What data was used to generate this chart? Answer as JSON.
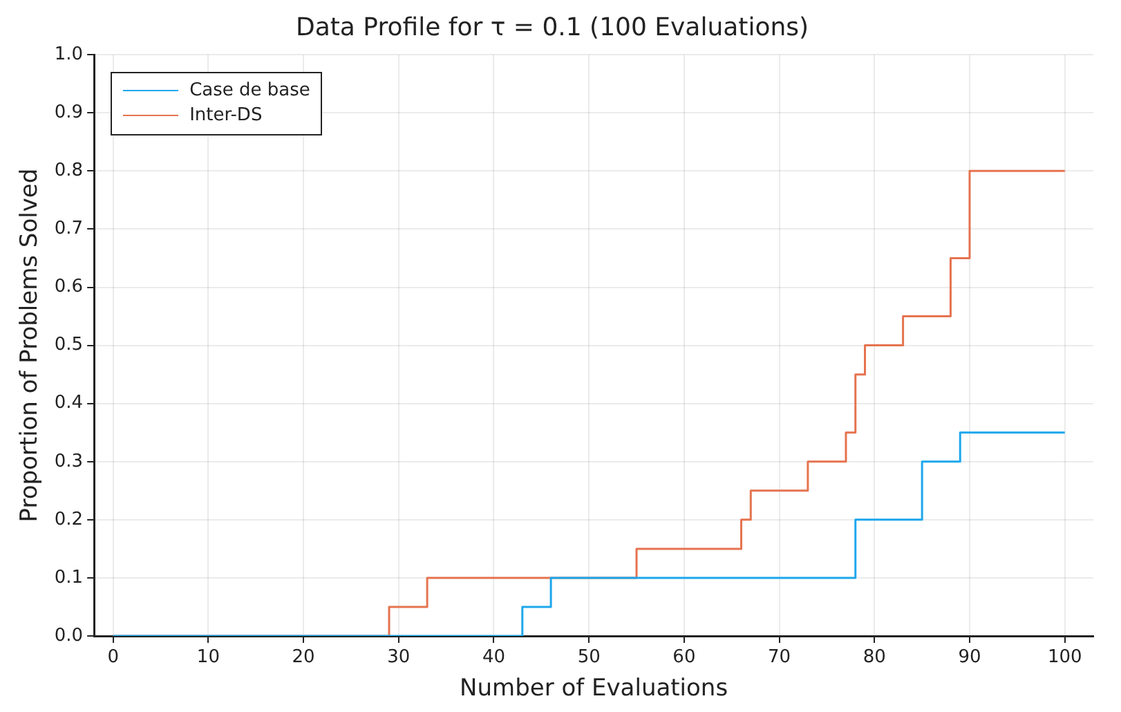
{
  "chart_data": {
    "type": "step",
    "title": "Data Profile for τ = 0.1 (100 Evaluations)",
    "xlabel": "Number of Evaluations",
    "ylabel": "Proportion of Problems Solved",
    "xlim": [
      -2,
      103
    ],
    "xticks": [
      0,
      10,
      20,
      30,
      40,
      50,
      60,
      70,
      80,
      90,
      100
    ],
    "ylim": [
      0,
      1
    ],
    "yticks": [
      {
        "value": 0,
        "label": "0.0"
      },
      {
        "value": 0.1,
        "label": "0.1"
      },
      {
        "value": 0.2,
        "label": "0.2"
      },
      {
        "value": 0.3,
        "label": "0.3"
      },
      {
        "value": 0.4,
        "label": "0.4"
      },
      {
        "value": 0.5,
        "label": "0.5"
      },
      {
        "value": 0.6,
        "label": "0.6"
      },
      {
        "value": 0.7,
        "label": "0.7"
      },
      {
        "value": 0.8,
        "label": "0.8"
      },
      {
        "value": 0.9,
        "label": "0.9"
      },
      {
        "value": 1,
        "label": "1.0"
      }
    ],
    "grid": true,
    "legend": "top left",
    "marker": "none",
    "line_style": "solid",
    "series": [
      {
        "name": "Case de base",
        "color": "#1ca7ec",
        "x": [
          0,
          43,
          46,
          78,
          85,
          89,
          100
        ],
        "values": [
          0,
          0.05,
          0.1,
          0.2,
          0.3,
          0.35,
          0.35
        ]
      },
      {
        "name": "Inter-DS",
        "color": "#e5734f",
        "x": [
          0,
          29,
          33,
          55,
          66,
          67,
          73,
          77,
          78,
          79,
          83,
          88,
          90,
          100
        ],
        "values": [
          0,
          0.05,
          0.1,
          0.15,
          0.2,
          0.25,
          0.3,
          0.35,
          0.45,
          0.5,
          0.55,
          0.65,
          0.8,
          0.8
        ]
      }
    ]
  }
}
